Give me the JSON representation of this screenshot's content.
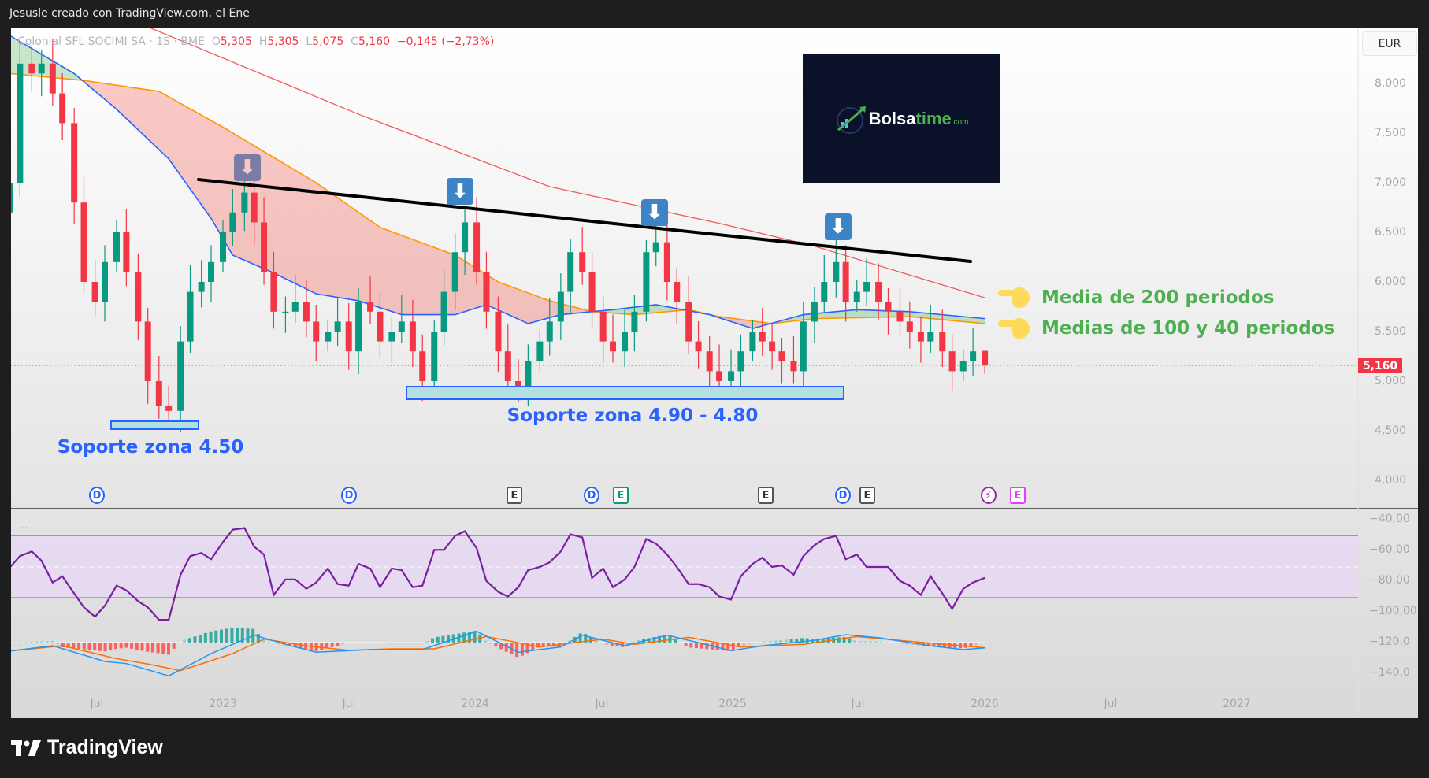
{
  "header": {
    "caption": "Jesusle creado con TradingView.com, el Ene"
  },
  "legend": {
    "symbol": "Colonial SFL SOCIMI SA · 1S · BME",
    "o_label": "O",
    "o": "5,305",
    "h_label": "H",
    "h": "5,305",
    "l_label": "L",
    "l": "5,075",
    "c_label": "C",
    "c": "5,160",
    "change": "−0,145 (−2,73%)"
  },
  "currency_button": "EUR",
  "price_axis": [
    "8,000",
    "7,500",
    "7,000",
    "6,500",
    "6,000",
    "5,500",
    "5,000",
    "4,500",
    "4,000"
  ],
  "last_price_label": "5,160",
  "lower_axis": [
    "−40,00",
    "−60,00",
    "−80,00",
    "−100,00",
    "−120,0",
    "−140,0"
  ],
  "time_axis": [
    "Jul",
    "2023",
    "Jul",
    "2024",
    "Jul",
    "2025",
    "Jul",
    "2026",
    "Jul",
    "2027"
  ],
  "annotations": {
    "support_1": "Soporte zona 4.50",
    "support_2": "Soporte zona 4.90 - 4.80",
    "ma200": "Media de 200 periodos",
    "ma100_40": "Medias de 100 y 40 periodos",
    "logo": {
      "brand_a": "Bolsa",
      "brand_b": "time",
      "brand_c": ".com"
    }
  },
  "events": [
    {
      "type": "dividend",
      "label": "D"
    },
    {
      "type": "dividend",
      "label": "D"
    },
    {
      "type": "earnings",
      "label": "E"
    },
    {
      "type": "dividend",
      "label": "D"
    },
    {
      "type": "earnings-green",
      "label": "E"
    },
    {
      "type": "earnings",
      "label": "E"
    },
    {
      "type": "dividend",
      "label": "D"
    },
    {
      "type": "earnings",
      "label": "E"
    },
    {
      "type": "lightning",
      "label": "⚡"
    },
    {
      "type": "earnings-future",
      "label": "E"
    }
  ],
  "indicator_menu": "...",
  "footer": {
    "brand": "TradingView"
  },
  "colors": {
    "up": "#089981",
    "down": "#f23645",
    "ma200": "#f5585c",
    "ma100": "#ff9800",
    "ma40": "#2962ff",
    "rsi": "#7b1fa2",
    "macd": "#2196f3",
    "signal": "#ff6d00",
    "support": "#2962ff",
    "note": "#4caf50"
  },
  "chart_data": {
    "type": "candlestick",
    "interval": "1S",
    "currency": "EUR",
    "ylim": [
      3.8,
      8.4
    ],
    "dates": [
      "2022-03-01",
      "2022-03-15",
      "2022-04-01",
      "2022-04-15",
      "2022-05-01",
      "2022-05-15",
      "2022-06-01",
      "2022-06-15",
      "2022-07-01",
      "2022-07-15",
      "2022-08-01",
      "2022-08-15",
      "2022-09-01",
      "2022-09-15",
      "2022-10-01",
      "2022-10-15",
      "2022-11-01",
      "2022-11-15",
      "2022-12-01",
      "2022-12-15",
      "2023-01-01",
      "2023-01-15",
      "2023-02-01",
      "2023-02-15",
      "2023-03-01",
      "2023-03-15",
      "2023-04-01",
      "2023-04-15",
      "2023-05-01",
      "2023-05-15",
      "2023-06-01",
      "2023-06-15",
      "2023-07-01",
      "2023-07-15",
      "2023-08-01",
      "2023-08-15",
      "2023-09-01",
      "2023-09-15",
      "2023-10-01",
      "2023-10-15",
      "2023-11-01",
      "2023-11-15",
      "2023-12-01",
      "2023-12-15",
      "2024-01-01",
      "2024-01-15",
      "2024-02-01",
      "2024-02-15",
      "2024-03-01",
      "2024-03-15",
      "2024-04-01",
      "2024-04-15",
      "2024-05-01",
      "2024-05-15",
      "2024-06-01",
      "2024-06-15",
      "2024-07-01",
      "2024-07-15",
      "2024-08-01",
      "2024-08-15",
      "2024-09-01",
      "2024-09-15",
      "2024-10-01",
      "2024-10-15",
      "2024-11-01",
      "2024-11-15",
      "2024-12-01",
      "2024-12-15",
      "2025-01-01",
      "2025-01-15",
      "2025-02-01",
      "2025-02-15",
      "2025-03-01",
      "2025-03-15",
      "2025-04-01",
      "2025-04-15",
      "2025-05-01",
      "2025-05-15",
      "2025-06-01",
      "2025-06-15",
      "2025-07-01",
      "2025-07-15",
      "2025-08-01",
      "2025-08-15",
      "2025-09-01",
      "2025-09-15",
      "2025-10-01",
      "2025-10-15",
      "2025-11-01",
      "2025-11-15",
      "2025-12-01",
      "2025-12-15",
      "2026-01-01"
    ],
    "close": [
      7.0,
      8.2,
      8.1,
      8.2,
      7.9,
      7.6,
      6.8,
      6.0,
      5.8,
      6.2,
      6.5,
      6.1,
      5.6,
      5.0,
      4.75,
      4.7,
      5.4,
      5.9,
      6.0,
      6.2,
      6.5,
      6.7,
      6.9,
      6.6,
      6.1,
      5.7,
      5.7,
      5.8,
      5.6,
      5.4,
      5.5,
      5.6,
      5.3,
      5.8,
      5.7,
      5.4,
      5.5,
      5.6,
      5.3,
      5.0,
      5.5,
      5.9,
      6.3,
      6.6,
      6.1,
      5.7,
      5.3,
      5.0,
      4.95,
      5.2,
      5.4,
      5.6,
      5.9,
      6.3,
      6.1,
      5.7,
      5.4,
      5.3,
      5.5,
      5.7,
      6.3,
      6.4,
      6.0,
      5.8,
      5.4,
      5.3,
      5.1,
      5.0,
      5.1,
      5.3,
      5.5,
      5.4,
      5.3,
      5.2,
      5.1,
      5.6,
      5.8,
      6.0,
      6.2,
      5.8,
      5.9,
      6.0,
      5.8,
      5.7,
      5.6,
      5.5,
      5.4,
      5.5,
      5.3,
      5.1,
      5.2,
      5.3,
      5.16
    ],
    "last_candle": {
      "open": 5.305,
      "high": 5.305,
      "low": 5.075,
      "close": 5.16
    },
    "moving_averages": [
      {
        "period": 200,
        "points": [
          [
            "2022-08-15",
            8.65
          ],
          [
            "2022-09-15",
            8.57
          ],
          [
            "2023-07-15",
            7.69
          ],
          [
            "2024-04-15",
            6.96
          ],
          [
            "2024-12-15",
            6.59
          ],
          [
            "2025-05-01",
            6.36
          ],
          [
            "2026-01-01",
            5.84
          ]
        ]
      },
      {
        "period": 100,
        "points": [
          [
            "2022-03-01",
            8.1
          ],
          [
            "2022-06-15",
            8.03
          ],
          [
            "2022-10-01",
            7.92
          ],
          [
            "2023-01-01",
            7.56
          ],
          [
            "2023-05-15",
            7.0
          ],
          [
            "2023-08-15",
            6.55
          ],
          [
            "2023-12-01",
            6.27
          ],
          [
            "2024-02-01",
            6.0
          ],
          [
            "2024-04-15",
            5.81
          ],
          [
            "2024-06-15",
            5.7
          ],
          [
            "2024-08-15",
            5.67
          ],
          [
            "2024-11-01",
            5.72
          ],
          [
            "2024-12-15",
            5.65
          ],
          [
            "2025-03-01",
            5.58
          ],
          [
            "2025-05-01",
            5.63
          ],
          [
            "2025-09-15",
            5.65
          ],
          [
            "2026-01-01",
            5.58
          ]
        ]
      },
      {
        "period": 40,
        "points": [
          [
            "2022-03-01",
            8.48
          ],
          [
            "2022-06-01",
            8.1
          ],
          [
            "2022-08-01",
            7.74
          ],
          [
            "2022-10-15",
            7.24
          ],
          [
            "2022-12-15",
            6.64
          ],
          [
            "2023-01-15",
            6.27
          ],
          [
            "2023-03-15",
            6.09
          ],
          [
            "2023-05-15",
            5.88
          ],
          [
            "2023-07-15",
            5.81
          ],
          [
            "2023-09-15",
            5.67
          ],
          [
            "2023-12-01",
            5.67
          ],
          [
            "2024-01-15",
            5.77
          ],
          [
            "2024-03-15",
            5.58
          ],
          [
            "2024-05-01",
            5.67
          ],
          [
            "2024-07-15",
            5.72
          ],
          [
            "2024-09-15",
            5.77
          ],
          [
            "2024-12-01",
            5.67
          ],
          [
            "2025-02-01",
            5.53
          ],
          [
            "2025-04-15",
            5.67
          ],
          [
            "2025-07-01",
            5.72
          ],
          [
            "2025-09-15",
            5.7
          ],
          [
            "2026-01-01",
            5.63
          ]
        ]
      }
    ],
    "rsi": {
      "band": [
        30,
        70
      ],
      "values": [
        50,
        57,
        60,
        54,
        40,
        44,
        33,
        24,
        18,
        25,
        38,
        35,
        28,
        24,
        16,
        16,
        45,
        57,
        59,
        55,
        66,
        74,
        75,
        63,
        58,
        32,
        42,
        42,
        36,
        40,
        49,
        39,
        38,
        52,
        49,
        37,
        49,
        48,
        37,
        38,
        61,
        61,
        70,
        73,
        62,
        41,
        34,
        31,
        37,
        48,
        50,
        53,
        60,
        71,
        69,
        43,
        49,
        37,
        42,
        50,
        68,
        65,
        58,
        50,
        39,
        39,
        37,
        31,
        29,
        44,
        52,
        56,
        50,
        51,
        45,
        57,
        64,
        68,
        70,
        55,
        58,
        50,
        50,
        50,
        41,
        38,
        32,
        44,
        33,
        23,
        36,
        40,
        43
      ]
    },
    "macd": {
      "zero": -120.5,
      "macd": [
        [
          "2022-03-01",
          -126
        ],
        [
          "2022-05-01",
          -122.6
        ],
        [
          "2022-07-15",
          -132.8
        ],
        [
          "2022-08-15",
          -134.2
        ],
        [
          "2022-10-15",
          -142.2
        ],
        [
          "2022-12-15",
          -127.7
        ],
        [
          "2023-02-15",
          -115.7
        ],
        [
          "2023-04-01",
          -121.7
        ],
        [
          "2023-05-15",
          -126.8
        ],
        [
          "2023-08-01",
          -125.1
        ],
        [
          "2023-10-15",
          -125.1
        ],
        [
          "2024-01-01",
          -113.2
        ],
        [
          "2024-03-01",
          -126.8
        ],
        [
          "2024-05-01",
          -123.4
        ],
        [
          "2024-06-01",
          -115.7
        ],
        [
          "2024-08-01",
          -122.6
        ],
        [
          "2024-10-01",
          -115.7
        ],
        [
          "2024-11-01",
          -119.1
        ],
        [
          "2025-01-01",
          -125.8
        ],
        [
          "2025-02-15",
          -122.6
        ],
        [
          "2025-05-01",
          -119.1
        ],
        [
          "2025-06-15",
          -115.4
        ],
        [
          "2025-08-01",
          -117.4
        ],
        [
          "2025-10-15",
          -122.6
        ],
        [
          "2025-12-01",
          -125.1
        ],
        [
          "2026-01-01",
          -124
        ]
      ],
      "signal": [
        [
          "2022-03-01",
          -126
        ],
        [
          "2022-05-15",
          -122.6
        ],
        [
          "2022-08-01",
          -131
        ],
        [
          "2022-09-15",
          -134.5
        ],
        [
          "2022-11-01",
          -138.8
        ],
        [
          "2023-01-15",
          -127.7
        ],
        [
          "2023-03-01",
          -118.3
        ],
        [
          "2023-05-01",
          -122.6
        ],
        [
          "2023-07-01",
          -125.6
        ],
        [
          "2023-09-01",
          -124.6
        ],
        [
          "2023-11-01",
          -124.6
        ],
        [
          "2024-01-15",
          -116.6
        ],
        [
          "2024-04-01",
          -123.4
        ],
        [
          "2024-07-01",
          -118.3
        ],
        [
          "2024-08-15",
          -121.7
        ],
        [
          "2024-11-01",
          -117.1
        ],
        [
          "2025-01-15",
          -123.4
        ],
        [
          "2025-04-15",
          -121.7
        ],
        [
          "2025-07-01",
          -116.6
        ],
        [
          "2025-10-15",
          -120.9
        ],
        [
          "2026-01-01",
          -123.9
        ]
      ]
    }
  }
}
